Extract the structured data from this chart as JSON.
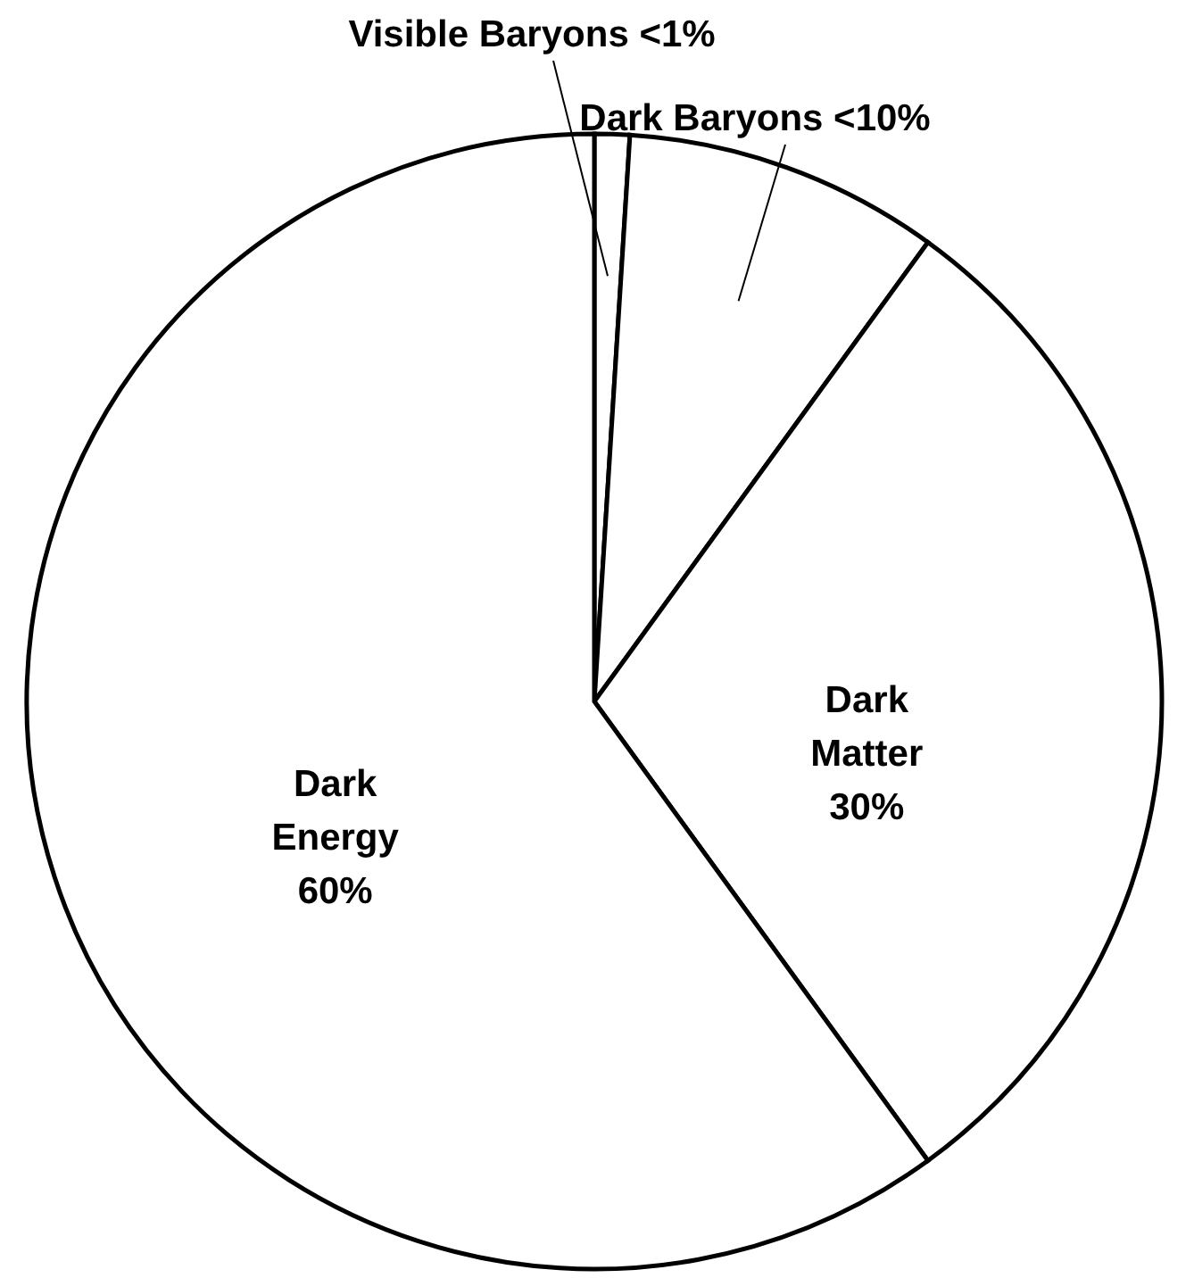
{
  "chart_data": {
    "type": "pie",
    "categories": [
      "Visible Baryons",
      "Dark Baryons",
      "Dark Matter",
      "Dark Energy"
    ],
    "values": [
      1,
      9,
      30,
      60
    ],
    "value_labels": [
      "<1%",
      "<10%",
      "30%",
      "60%"
    ],
    "colors": [
      "#ffffff",
      "#ffffff",
      "#ffffff",
      "#ffffff"
    ]
  }
}
